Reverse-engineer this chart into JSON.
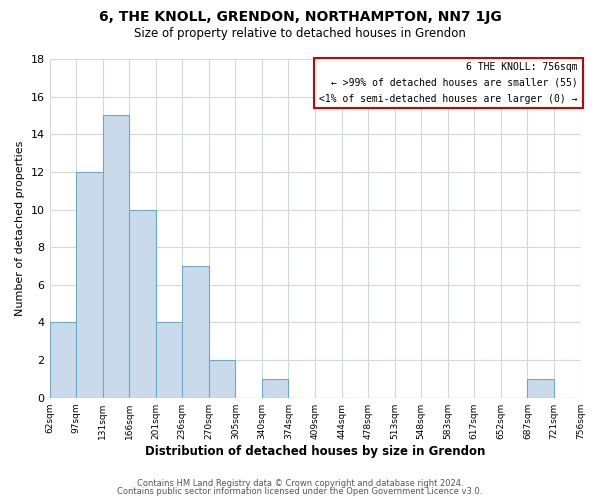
{
  "title": "6, THE KNOLL, GRENDON, NORTHAMPTON, NN7 1JG",
  "subtitle": "Size of property relative to detached houses in Grendon",
  "xlabel": "Distribution of detached houses by size in Grendon",
  "ylabel": "Number of detached properties",
  "bin_labels": [
    "62sqm",
    "97sqm",
    "131sqm",
    "166sqm",
    "201sqm",
    "236sqm",
    "270sqm",
    "305sqm",
    "340sqm",
    "374sqm",
    "409sqm",
    "444sqm",
    "478sqm",
    "513sqm",
    "548sqm",
    "583sqm",
    "617sqm",
    "652sqm",
    "687sqm",
    "721sqm",
    "756sqm"
  ],
  "bar_values": [
    4,
    12,
    15,
    10,
    4,
    7,
    2,
    0,
    1,
    0,
    0,
    0,
    0,
    0,
    0,
    0,
    0,
    0,
    1,
    0
  ],
  "bar_color": "#c9daea",
  "bar_edge_color": "#6fa8c8",
  "highlight_box_color": "#cc0000",
  "ylim": [
    0,
    18
  ],
  "yticks": [
    0,
    2,
    4,
    6,
    8,
    10,
    12,
    14,
    16,
    18
  ],
  "legend_title": "6 THE KNOLL: 756sqm",
  "legend_line1": "← >99% of detached houses are smaller (55)",
  "legend_line2": "<1% of semi-detached houses are larger (0) →",
  "footer_line1": "Contains HM Land Registry data © Crown copyright and database right 2024.",
  "footer_line2": "Contains public sector information licensed under the Open Government Licence v3.0.",
  "background_color": "#ffffff",
  "grid_color": "#d0d8e0"
}
